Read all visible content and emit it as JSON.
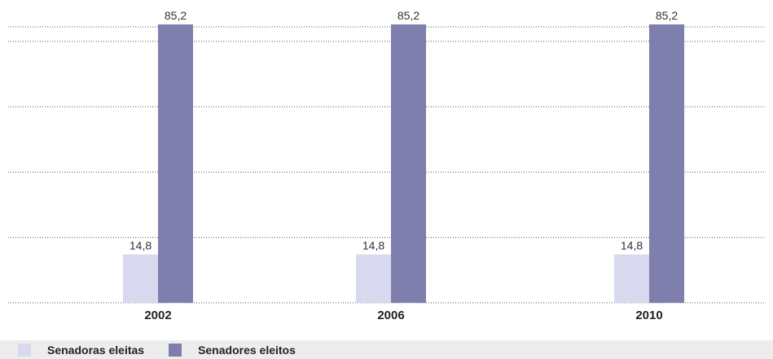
{
  "chart_data": {
    "type": "bar",
    "categories": [
      "2002",
      "2006",
      "2010"
    ],
    "series": [
      {
        "name": "Senadoras eleitas",
        "values": [
          14.8,
          14.8,
          14.8
        ],
        "labels": [
          "14,8",
          "14,8",
          "14,8"
        ],
        "color": "#d8d8ee"
      },
      {
        "name": "Senadores eleitos",
        "values": [
          85.2,
          85.2,
          85.2
        ],
        "labels": [
          "85,2",
          "85,2",
          "85,2"
        ],
        "color": "#7f7fad"
      }
    ],
    "title": "",
    "xlabel": "",
    "ylabel": "",
    "ylim": [
      0,
      100
    ],
    "grid": true,
    "legend_position": "bottom-left"
  },
  "legend": {
    "background": "#ededed"
  }
}
